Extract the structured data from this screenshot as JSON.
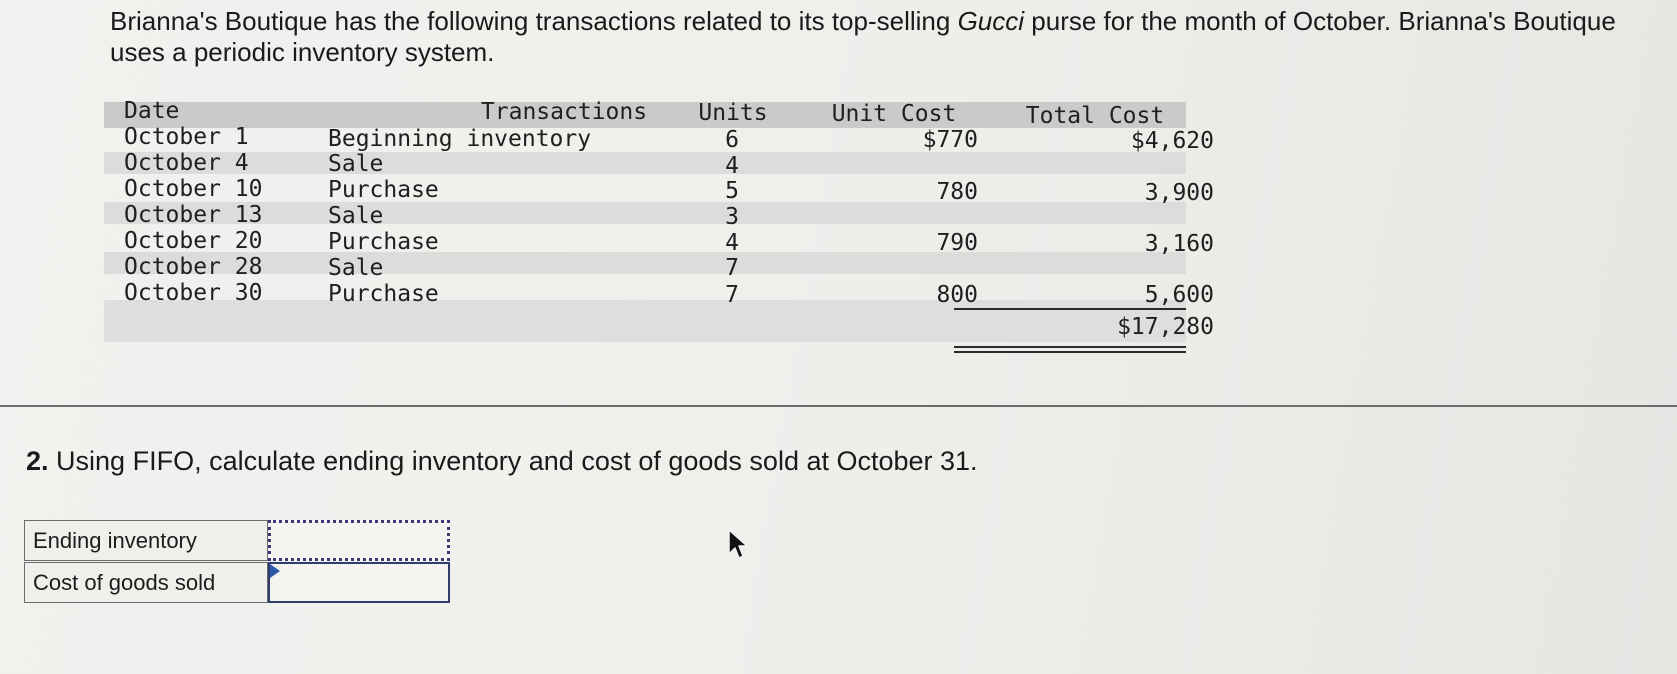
{
  "intro": {
    "part1": "Brianna's Boutique has the following transactions related to its top-selling ",
    "brand": "Gucci",
    "part2": " purse for the month of October. Brianna's Boutique uses a periodic inventory system."
  },
  "table": {
    "headers": {
      "date": "Date",
      "transactions": "Transactions",
      "units": "Units",
      "unit_cost": "Unit Cost",
      "total_cost": "Total Cost"
    },
    "rows": [
      {
        "date": "October 1",
        "transaction": "Beginning inventory",
        "units": "6",
        "unit_cost": "$770",
        "total_cost": "$4,620"
      },
      {
        "date": "October 4",
        "transaction": "Sale",
        "units": "4",
        "unit_cost": "",
        "total_cost": ""
      },
      {
        "date": "October 10",
        "transaction": "Purchase",
        "units": "5",
        "unit_cost": "780",
        "total_cost": "3,900"
      },
      {
        "date": "October 13",
        "transaction": "Sale",
        "units": "3",
        "unit_cost": "",
        "total_cost": ""
      },
      {
        "date": "October 20",
        "transaction": "Purchase",
        "units": "4",
        "unit_cost": "790",
        "total_cost": "3,160"
      },
      {
        "date": "October 28",
        "transaction": "Sale",
        "units": "7",
        "unit_cost": "",
        "total_cost": ""
      },
      {
        "date": "October 30",
        "transaction": "Purchase",
        "units": "7",
        "unit_cost": "800",
        "total_cost": "5,600"
      }
    ],
    "grand_total": "$17,280"
  },
  "question": {
    "number": "2.",
    "text": "Using FIFO, calculate ending inventory and cost of goods sold at October 31."
  },
  "answers": {
    "ending_inventory": {
      "label": "Ending inventory",
      "value": ""
    },
    "cogs": {
      "label": "Cost of goods sold",
      "value": ""
    }
  }
}
